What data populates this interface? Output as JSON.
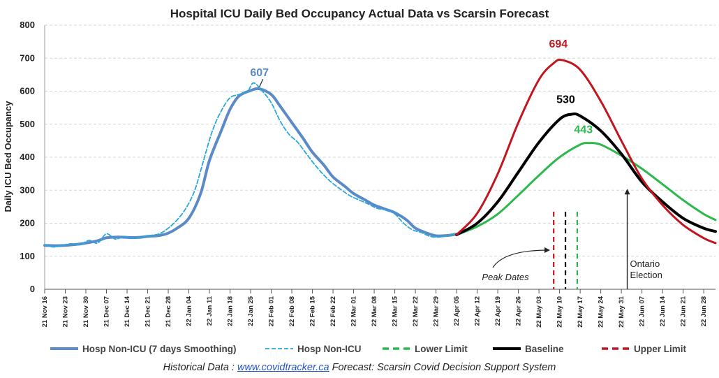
{
  "chart_data": {
    "type": "line",
    "title": "Hospital ICU Daily Bed Occupancy Actual Data vs Scarsin Forecast",
    "ylabel": "Daily ICU Bed Occupancy",
    "ylim": [
      0,
      800
    ],
    "yticks": [
      "0",
      "100",
      "200",
      "300",
      "400",
      "500",
      "600",
      "700",
      "800"
    ],
    "xlim": [
      "2021-11-16",
      "2022-07-02"
    ],
    "xtick_labels": [
      "21 Nov 16",
      "21 Nov 23",
      "21 Nov 30",
      "21 Dec 07",
      "21 Dec 14",
      "21 Dec 21",
      "21 Dec 28",
      "22 Jan 04",
      "22 Jan 11",
      "22 Jan 18",
      "22 Jan 25",
      "22 Feb 01",
      "22 Feb 08",
      "22 Feb 15",
      "22 Feb 22",
      "22 Mar 01",
      "22 Mar 08",
      "22 Mar 15",
      "22 Mar 22",
      "22 Mar 29",
      "22 Apr 05",
      "22 Apr 12",
      "22 Apr 19",
      "22 Apr 26",
      "22 May 03",
      "22 May 10",
      "22 May 17",
      "22 May 24",
      "22 May 31",
      "22 Jun 07",
      "22 Jun 14",
      "22 Jun 21",
      "22 Jun 28"
    ],
    "grid": true,
    "legend_position": "bottom",
    "series": [
      {
        "name": "Hosp Non-ICU (7 days Smoothing)",
        "color": "#5b8ac6",
        "style": "solid-thick",
        "points": [
          [
            "2021-11-16",
            133
          ],
          [
            "2021-11-20",
            132
          ],
          [
            "2021-11-23",
            133
          ],
          [
            "2021-11-27",
            136
          ],
          [
            "2021-11-30",
            140
          ],
          [
            "2021-12-04",
            147
          ],
          [
            "2021-12-07",
            156
          ],
          [
            "2021-12-11",
            158
          ],
          [
            "2021-12-14",
            157
          ],
          [
            "2021-12-18",
            157
          ],
          [
            "2021-12-21",
            160
          ],
          [
            "2021-12-25",
            163
          ],
          [
            "2021-12-28",
            170
          ],
          [
            "2021-12-31",
            185
          ],
          [
            "2022-01-04",
            215
          ],
          [
            "2022-01-08",
            290
          ],
          [
            "2022-01-11",
            390
          ],
          [
            "2022-01-15",
            480
          ],
          [
            "2022-01-18",
            545
          ],
          [
            "2022-01-21",
            585
          ],
          [
            "2022-01-25",
            602
          ],
          [
            "2022-01-28",
            607
          ],
          [
            "2022-02-01",
            590
          ],
          [
            "2022-02-04",
            555
          ],
          [
            "2022-02-08",
            505
          ],
          [
            "2022-02-12",
            455
          ],
          [
            "2022-02-15",
            415
          ],
          [
            "2022-02-19",
            375
          ],
          [
            "2022-02-22",
            340
          ],
          [
            "2022-02-26",
            312
          ],
          [
            "2022-03-01",
            290
          ],
          [
            "2022-03-05",
            270
          ],
          [
            "2022-03-08",
            255
          ],
          [
            "2022-03-12",
            242
          ],
          [
            "2022-03-15",
            232
          ],
          [
            "2022-03-19",
            210
          ],
          [
            "2022-03-22",
            185
          ],
          [
            "2022-03-26",
            170
          ],
          [
            "2022-03-29",
            162
          ],
          [
            "2022-04-02",
            163
          ],
          [
            "2022-04-05",
            167
          ]
        ]
      },
      {
        "name": "Hosp Non-ICU",
        "color": "#29a8e0",
        "style": "dashed",
        "points": [
          [
            "2021-11-16",
            135
          ],
          [
            "2021-11-19",
            128
          ],
          [
            "2021-11-22",
            133
          ],
          [
            "2021-11-25",
            138
          ],
          [
            "2021-11-28",
            135
          ],
          [
            "2021-12-01",
            148
          ],
          [
            "2021-12-04",
            140
          ],
          [
            "2021-12-07",
            168
          ],
          [
            "2021-12-10",
            152
          ],
          [
            "2021-12-13",
            160
          ],
          [
            "2021-12-16",
            155
          ],
          [
            "2021-12-19",
            158
          ],
          [
            "2021-12-22",
            163
          ],
          [
            "2021-12-25",
            168
          ],
          [
            "2021-12-28",
            185
          ],
          [
            "2021-12-31",
            210
          ],
          [
            "2022-01-03",
            245
          ],
          [
            "2022-01-06",
            300
          ],
          [
            "2022-01-09",
            390
          ],
          [
            "2022-01-12",
            480
          ],
          [
            "2022-01-15",
            540
          ],
          [
            "2022-01-18",
            580
          ],
          [
            "2022-01-21",
            590
          ],
          [
            "2022-01-24",
            600
          ],
          [
            "2022-01-26",
            625
          ],
          [
            "2022-01-29",
            600
          ],
          [
            "2022-02-01",
            565
          ],
          [
            "2022-02-04",
            510
          ],
          [
            "2022-02-07",
            470
          ],
          [
            "2022-02-10",
            445
          ],
          [
            "2022-02-13",
            410
          ],
          [
            "2022-02-16",
            375
          ],
          [
            "2022-02-19",
            345
          ],
          [
            "2022-02-22",
            320
          ],
          [
            "2022-02-25",
            300
          ],
          [
            "2022-02-28",
            282
          ],
          [
            "2022-03-03",
            270
          ],
          [
            "2022-03-06",
            258
          ],
          [
            "2022-03-09",
            245
          ],
          [
            "2022-03-12",
            240
          ],
          [
            "2022-03-15",
            228
          ],
          [
            "2022-03-18",
            200
          ],
          [
            "2022-03-21",
            180
          ],
          [
            "2022-03-24",
            172
          ],
          [
            "2022-03-27",
            160
          ],
          [
            "2022-03-30",
            158
          ],
          [
            "2022-04-02",
            163
          ],
          [
            "2022-04-05",
            168
          ]
        ]
      },
      {
        "name": "Lower Limit",
        "color": "#2db84d",
        "style": "solid",
        "points": [
          [
            "2022-04-05",
            165
          ],
          [
            "2022-04-12",
            190
          ],
          [
            "2022-04-19",
            228
          ],
          [
            "2022-04-26",
            285
          ],
          [
            "2022-05-03",
            345
          ],
          [
            "2022-05-10",
            400
          ],
          [
            "2022-05-17",
            438
          ],
          [
            "2022-05-20",
            443
          ],
          [
            "2022-05-24",
            438
          ],
          [
            "2022-05-31",
            405
          ],
          [
            "2022-06-07",
            365
          ],
          [
            "2022-06-14",
            318
          ],
          [
            "2022-06-21",
            270
          ],
          [
            "2022-06-28",
            228
          ],
          [
            "2022-07-02",
            210
          ]
        ]
      },
      {
        "name": "Baseline",
        "color": "#000000",
        "style": "solid-thick",
        "points": [
          [
            "2022-04-05",
            165
          ],
          [
            "2022-04-12",
            200
          ],
          [
            "2022-04-19",
            265
          ],
          [
            "2022-04-26",
            355
          ],
          [
            "2022-05-03",
            445
          ],
          [
            "2022-05-10",
            515
          ],
          [
            "2022-05-14",
            530
          ],
          [
            "2022-05-17",
            525
          ],
          [
            "2022-05-24",
            480
          ],
          [
            "2022-05-31",
            410
          ],
          [
            "2022-06-07",
            325
          ],
          [
            "2022-06-14",
            265
          ],
          [
            "2022-06-21",
            215
          ],
          [
            "2022-06-28",
            185
          ],
          [
            "2022-07-02",
            175
          ]
        ]
      },
      {
        "name": "Upper Limit",
        "color": "#c0161f",
        "style": "solid",
        "points": [
          [
            "2022-04-05",
            165
          ],
          [
            "2022-04-12",
            230
          ],
          [
            "2022-04-19",
            350
          ],
          [
            "2022-04-26",
            505
          ],
          [
            "2022-05-03",
            635
          ],
          [
            "2022-05-08",
            685
          ],
          [
            "2022-05-11",
            694
          ],
          [
            "2022-05-17",
            665
          ],
          [
            "2022-05-24",
            570
          ],
          [
            "2022-05-31",
            450
          ],
          [
            "2022-06-07",
            335
          ],
          [
            "2022-06-14",
            255
          ],
          [
            "2022-06-21",
            195
          ],
          [
            "2022-06-28",
            155
          ],
          [
            "2022-07-02",
            140
          ]
        ]
      }
    ],
    "peak_labels": [
      {
        "text": "607",
        "date": "2022-01-28",
        "value": 607,
        "color": "#5b8ac6"
      },
      {
        "text": "694",
        "date": "2022-05-11",
        "value": 694,
        "color": "#c0161f"
      },
      {
        "text": "530",
        "date": "2022-05-14",
        "value": 530,
        "color": "#000000"
      },
      {
        "text": "443",
        "date": "2022-05-20",
        "value": 443,
        "color": "#2db84d"
      }
    ],
    "peak_markers": [
      {
        "series": "Upper Limit",
        "date": "2022-05-08",
        "color": "#c0161f"
      },
      {
        "series": "Baseline",
        "date": "2022-05-12",
        "color": "#000000"
      },
      {
        "series": "Lower Limit",
        "date": "2022-05-16",
        "color": "#2db84d"
      }
    ],
    "annotations": [
      {
        "text": "Peak Dates",
        "italic": true
      },
      {
        "text_lines": [
          "Ontario",
          "Election"
        ],
        "date": "2022-06-02"
      }
    ]
  },
  "legend": [
    {
      "label": "Hosp Non-ICU (7 days Smoothing)",
      "color": "#5b8ac6",
      "style": "solid-thick"
    },
    {
      "label": "Hosp Non-ICU",
      "color": "#29a8e0",
      "style": "dashed"
    },
    {
      "label": "Lower Limit",
      "color": "#2db84d",
      "style": "dashed-thick"
    },
    {
      "label": "Baseline",
      "color": "#000000",
      "style": "solid-thick"
    },
    {
      "label": "Upper Limit",
      "color": "#c0161f",
      "style": "dashed-thick"
    }
  ],
  "footer": {
    "prefix": "Historical Data : ",
    "link": "www.covidtracker.ca",
    "suffix": "  Forecast: Scarsin Covid Decision Support System"
  }
}
